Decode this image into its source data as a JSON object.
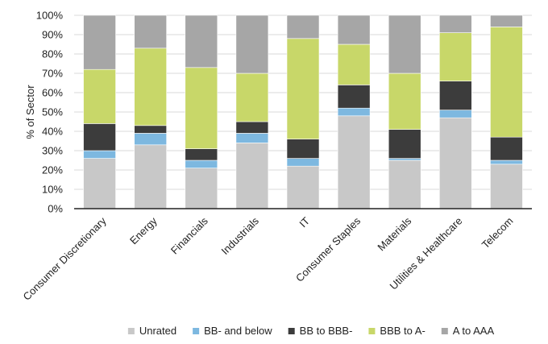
{
  "chart_data": {
    "type": "bar",
    "stacked": true,
    "categories": [
      "Consumer Discretionary",
      "Energy",
      "Financials",
      "Industrials",
      "IT",
      "Consumer Staples",
      "Materials",
      "Utilities & Healthcare",
      "Telecom"
    ],
    "series": [
      {
        "name": "Unrated",
        "color": "#c8c8c8",
        "values": [
          26,
          33,
          21,
          34,
          22,
          48,
          25,
          47,
          23
        ]
      },
      {
        "name": "BB- and below",
        "color": "#7db8e0",
        "values": [
          4,
          6,
          4,
          5,
          4,
          4,
          1,
          4,
          2
        ]
      },
      {
        "name": "BB to BBB-",
        "color": "#3c3c3c",
        "values": [
          14,
          4,
          6,
          6,
          10,
          12,
          15,
          15,
          12
        ]
      },
      {
        "name": "BBB to A-",
        "color": "#c8d769",
        "values": [
          28,
          40,
          42,
          25,
          52,
          21,
          29,
          25,
          57
        ]
      },
      {
        "name": "A to AAA",
        "color": "#a6a6a6",
        "values": [
          28,
          17,
          27,
          30,
          12,
          15,
          30,
          9,
          6
        ]
      }
    ],
    "ylabel": "% of Sector",
    "xlabel": "",
    "ylim": [
      0,
      100
    ],
    "yticks": [
      "0%",
      "10%",
      "20%",
      "30%",
      "40%",
      "50%",
      "60%",
      "70%",
      "80%",
      "90%",
      "100%"
    ],
    "grid": true,
    "legend_position": "bottom"
  }
}
